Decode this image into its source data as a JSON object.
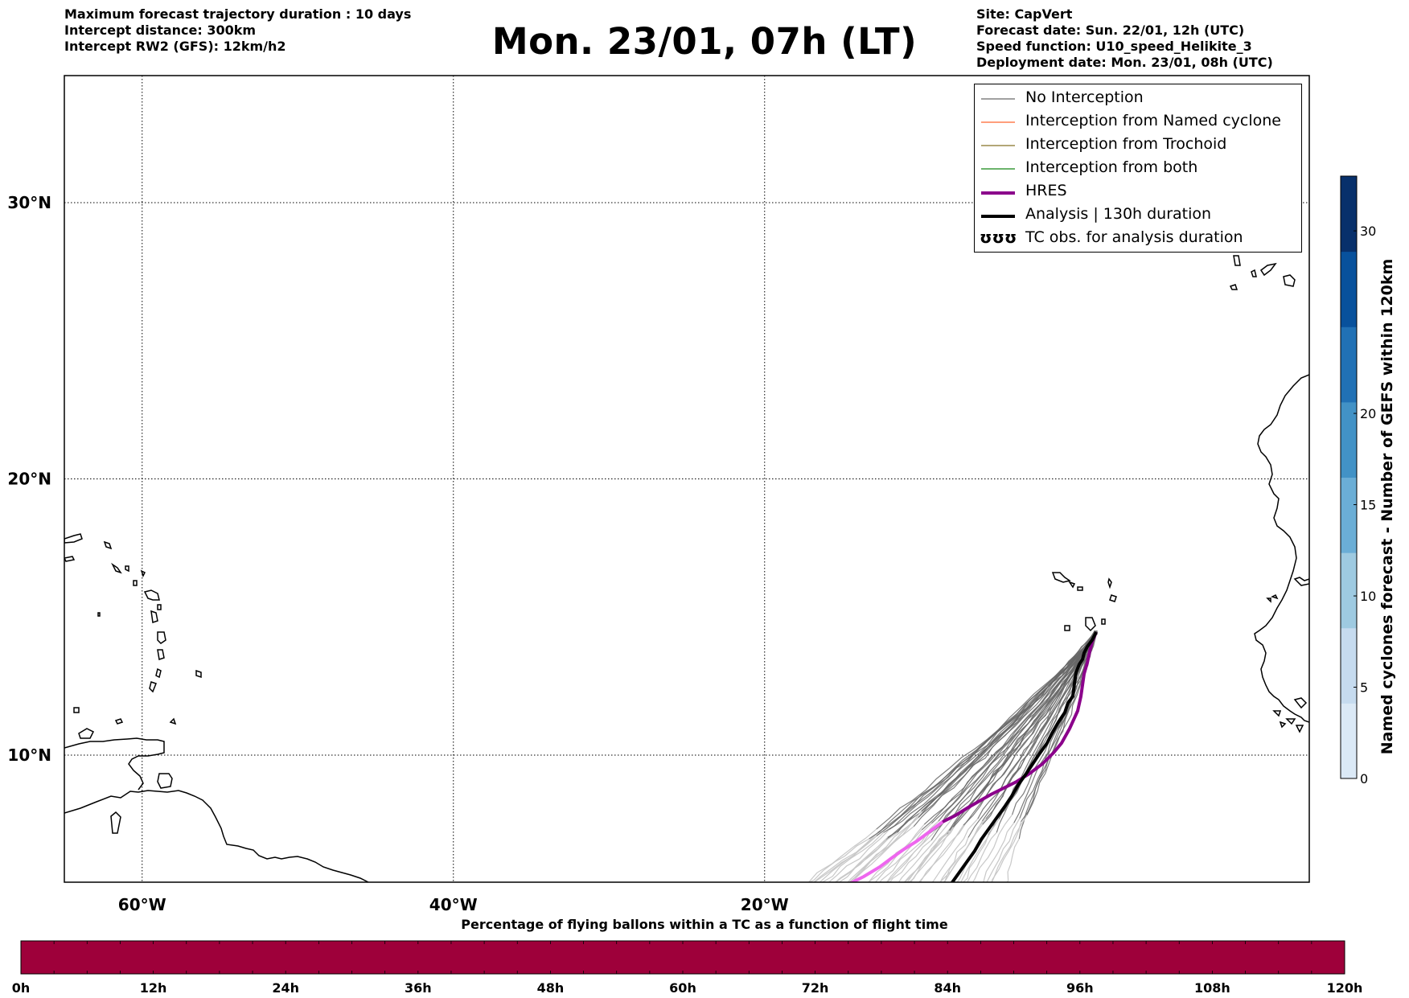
{
  "header": {
    "left_lines": [
      "Maximum forecast trajectory duration : 10 days",
      "Intercept distance: 300km",
      "Intercept RW2 (GFS):  12km/h2"
    ],
    "title": "Mon. 23/01, 07h (LT)",
    "right_lines": [
      "Site: CapVert",
      "Forecast date: Sun. 22/01, 12h (UTC)",
      "Speed function: U10_speed_Helikite_3",
      "Deployment date: Mon. 23/01, 08h (UTC)"
    ]
  },
  "map": {
    "lon_range": [
      -65,
      15
    ],
    "lat_range": [
      5.4,
      34.6
    ],
    "lat_ticks": [
      {
        "value": 30,
        "label": "30°N"
      },
      {
        "value": 20,
        "label": "20°N"
      },
      {
        "value": 10,
        "label": "10°N"
      }
    ],
    "lon_ticks": [
      {
        "value": -60,
        "label": "60°W"
      },
      {
        "value": -40,
        "label": "40°W"
      },
      {
        "value": -20,
        "label": "20°W"
      }
    ],
    "grid": "dotted",
    "launch_site": "CapVert"
  },
  "legend": {
    "placement": "top-right",
    "items": [
      {
        "label": "No Interception",
        "color": "#808080",
        "style": "thin"
      },
      {
        "label": "Interception from Named cyclone",
        "color": "#ff7f50",
        "style": "thin"
      },
      {
        "label": "Interception from Trochoid",
        "color": "#9a8a4a",
        "style": "thin"
      },
      {
        "label": "Interception from both",
        "color": "#3a9a3a",
        "style": "thin"
      },
      {
        "label": "HRES",
        "color": "#8b008b",
        "style": "thick"
      },
      {
        "label": "Analysis | 130h duration",
        "color": "#000000",
        "style": "thick"
      },
      {
        "label": "TC obs. for analysis duration",
        "color": "#000000",
        "style": "symbol",
        "symbol": "ʊʊʊ"
      }
    ]
  },
  "vertical_colorbar": {
    "label": "Named cyclones forecast - Number of GEFS within 120km",
    "range": [
      0,
      33
    ],
    "ticks": [
      0,
      5,
      10,
      15,
      20,
      30
    ],
    "colors": [
      "#dbe9f6",
      "#c6dbef",
      "#9ecae1",
      "#6baed6",
      "#4292c6",
      "#2171b5",
      "#08519c",
      "#08306b"
    ]
  },
  "horizontal_colorbar": {
    "title": "Percentage of flying ballons within a TC as a function of flight time",
    "color": "#9e003a",
    "ticks": [
      "0h",
      "12h",
      "24h",
      "36h",
      "48h",
      "60h",
      "72h",
      "84h",
      "96h",
      "108h",
      "120h"
    ]
  }
}
